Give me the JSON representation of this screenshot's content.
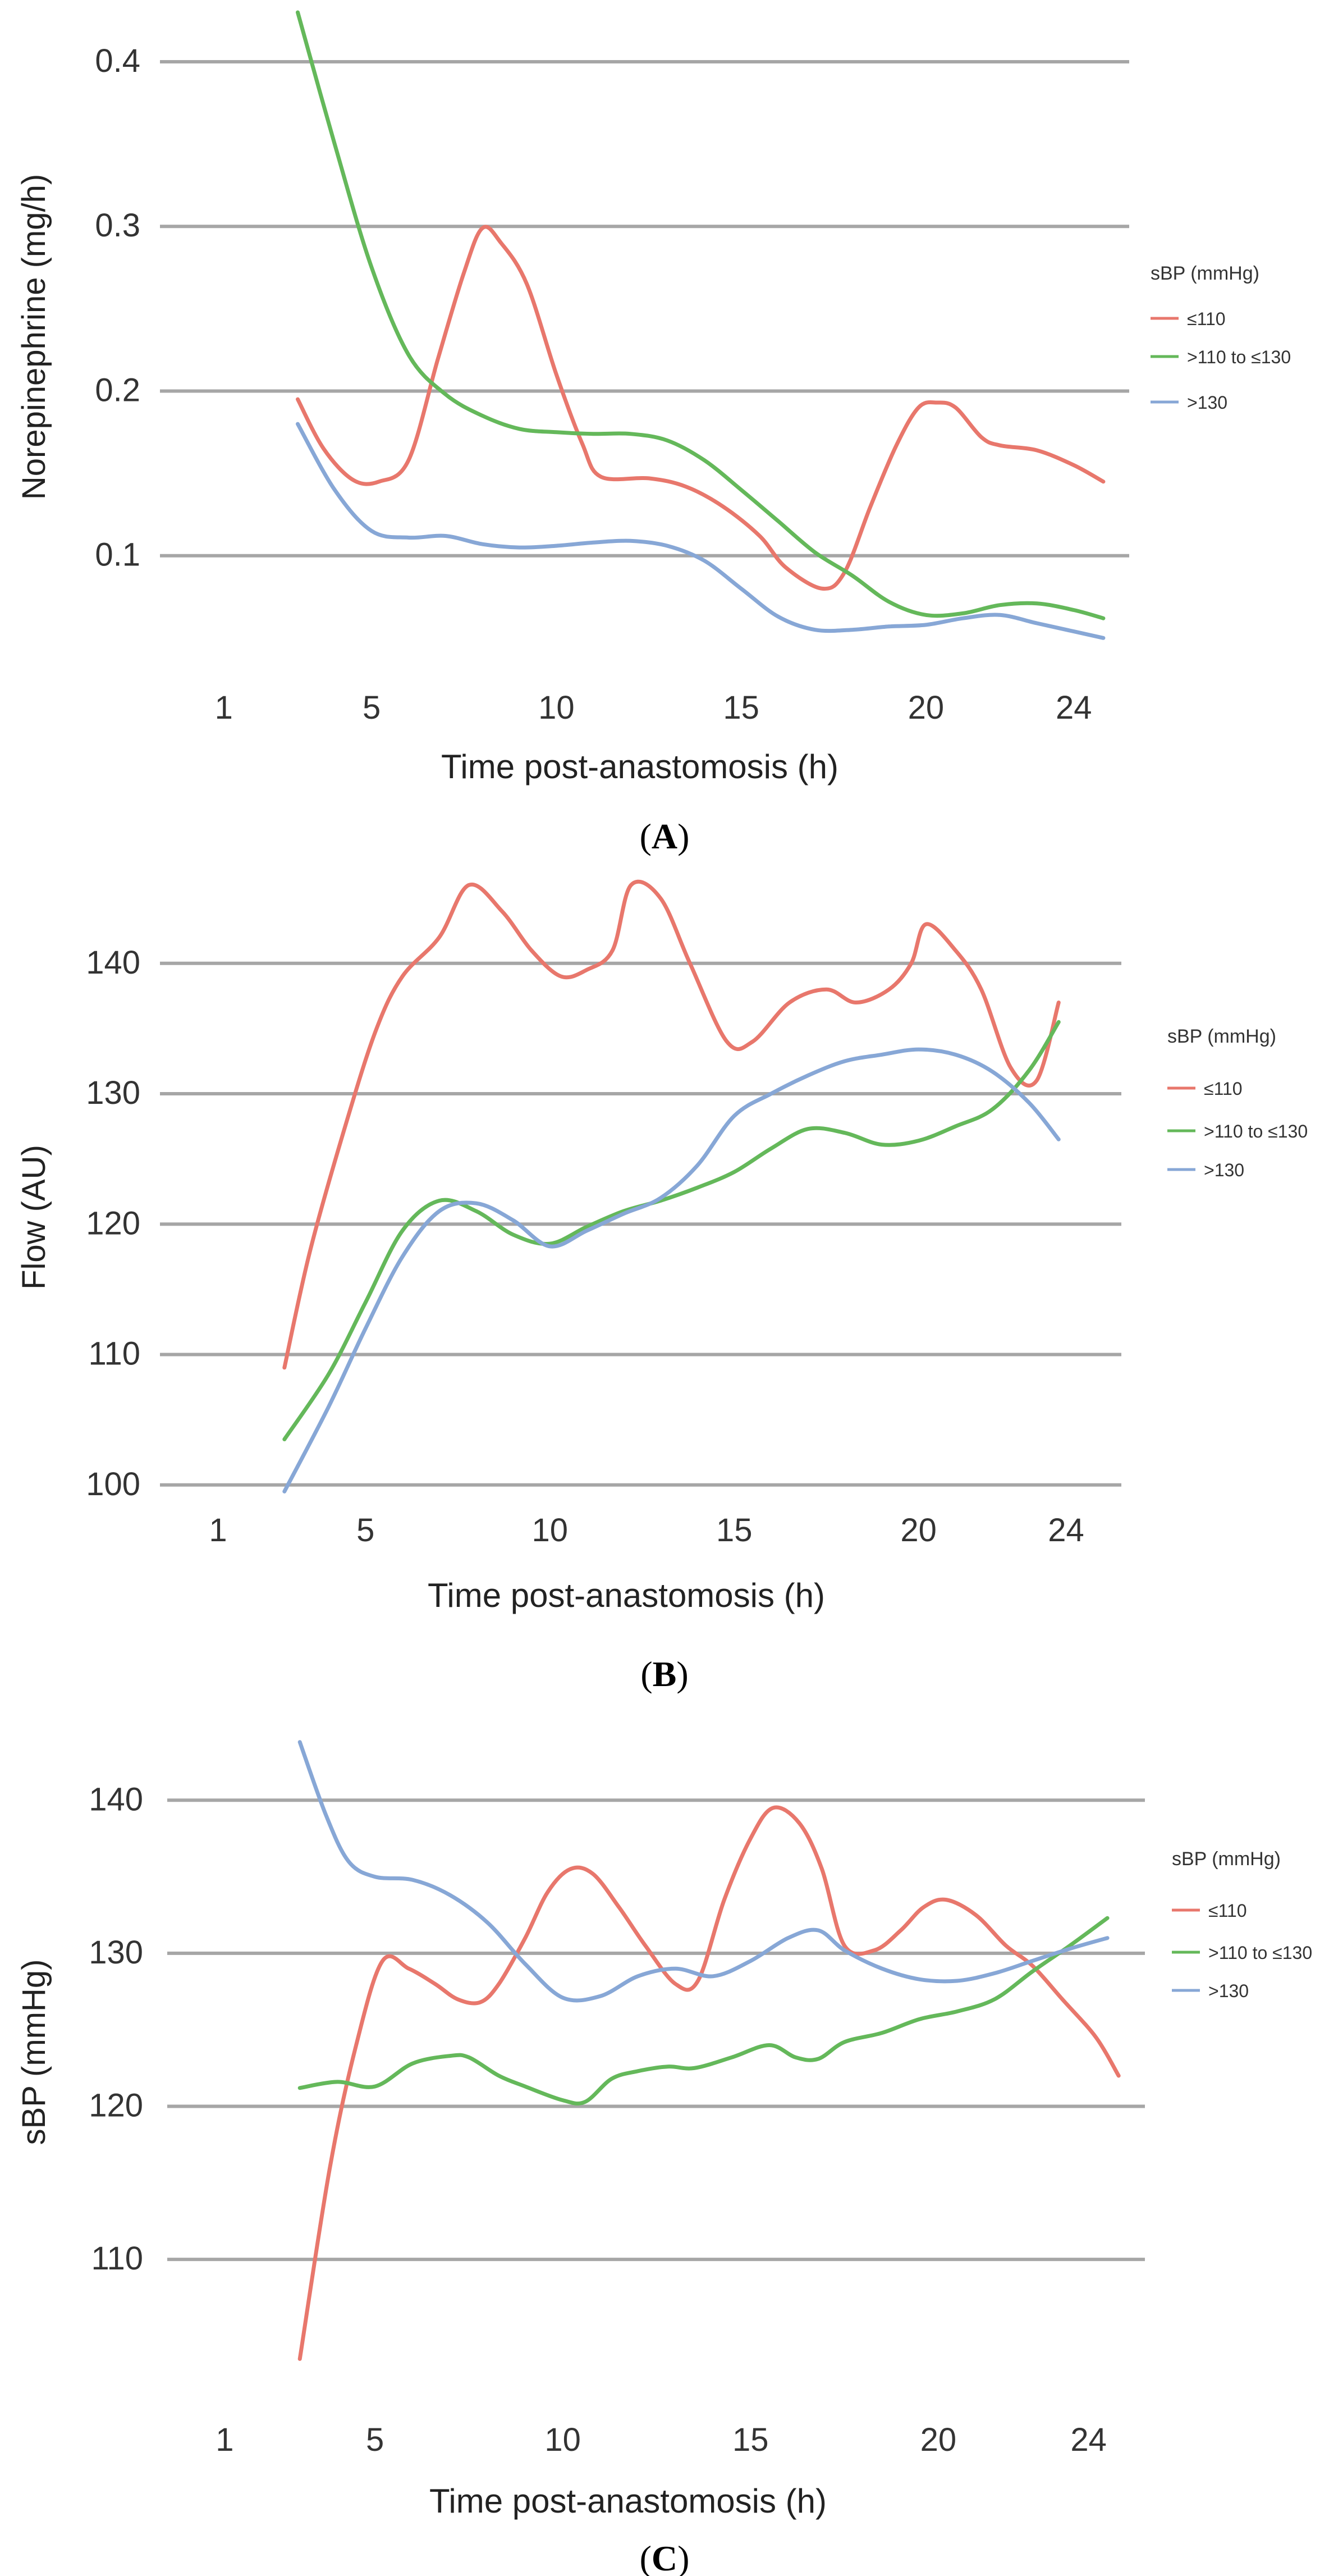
{
  "chart_data": [
    {
      "type": "line",
      "caption_letter": "A",
      "ylabel": "Norepinephrine (mg/h)",
      "xlabel": "Time post-anastomosis (h)",
      "yticks": [
        0.1,
        0.2,
        0.3,
        0.4
      ],
      "ytick_labels": [
        "0.1",
        "0.2",
        "0.3",
        "0.4"
      ],
      "ylim": [
        0.03,
        0.43
      ],
      "xticks": [
        1,
        5,
        10,
        15,
        20,
        24
      ],
      "xtick_labels": [
        "1",
        "5",
        "10",
        "15",
        "20",
        "24"
      ],
      "xlim": [
        -0.5,
        25.5
      ],
      "grid": true,
      "legend": {
        "title": "sBP (mmHg)",
        "placement": "right",
        "entries": [
          "≤110",
          ">110 to ≤130",
          ">130"
        ]
      },
      "series": [
        {
          "name": "≤110",
          "color": "#e8776c",
          "x": [
            3,
            3.7,
            4.5,
            5.2,
            6,
            6.8,
            7.5,
            8,
            8.5,
            9.2,
            10,
            10.7,
            11.2,
            12.5,
            13.5,
            14.5,
            15.5,
            16.2,
            17.2,
            17.8,
            18.5,
            19.2,
            19.8,
            20.3,
            20.8,
            21.5,
            22,
            23,
            24,
            24.8
          ],
          "values": [
            0.195,
            0.165,
            0.146,
            0.145,
            0.158,
            0.22,
            0.272,
            0.299,
            0.29,
            0.265,
            0.21,
            0.168,
            0.148,
            0.147,
            0.142,
            0.13,
            0.112,
            0.093,
            0.08,
            0.09,
            0.13,
            0.167,
            0.19,
            0.193,
            0.19,
            0.172,
            0.167,
            0.164,
            0.155,
            0.145
          ]
        },
        {
          "name": ">110 to ≤130",
          "color": "#64b85a",
          "x": [
            3,
            4,
            5,
            6,
            7,
            8,
            9,
            10,
            11,
            12,
            13,
            14,
            15,
            16,
            17,
            18,
            19,
            20,
            21,
            22,
            23,
            24,
            24.8
          ],
          "values": [
            0.43,
            0.35,
            0.275,
            0.222,
            0.198,
            0.185,
            0.177,
            0.175,
            0.174,
            0.174,
            0.17,
            0.158,
            0.14,
            0.121,
            0.102,
            0.088,
            0.072,
            0.064,
            0.065,
            0.07,
            0.071,
            0.067,
            0.062
          ]
        },
        {
          "name": ">130",
          "color": "#87a7d6",
          "x": [
            3,
            4,
            5,
            6,
            7,
            8,
            9,
            10,
            11,
            12,
            13,
            14,
            15,
            16,
            17,
            18,
            19,
            20,
            21,
            22,
            23,
            24,
            24.8
          ],
          "values": [
            0.18,
            0.14,
            0.115,
            0.111,
            0.112,
            0.107,
            0.105,
            0.106,
            0.108,
            0.109,
            0.106,
            0.097,
            0.08,
            0.063,
            0.055,
            0.055,
            0.057,
            0.058,
            0.062,
            0.064,
            0.059,
            0.054,
            0.05
          ]
        }
      ]
    },
    {
      "type": "line",
      "caption_letter": "B",
      "ylabel": "Flow (AU)",
      "xlabel": "Time post-anastomosis (h)",
      "yticks": [
        100,
        110,
        120,
        130,
        140
      ],
      "ytick_labels": [
        "100",
        "110",
        "120",
        "130",
        "140"
      ],
      "ylim": [
        99,
        148
      ],
      "xticks": [
        1,
        5,
        10,
        15,
        20,
        24
      ],
      "xtick_labels": [
        "1",
        "5",
        "10",
        "15",
        "20",
        "24"
      ],
      "xlim": [
        -0.5,
        25.5
      ],
      "grid": true,
      "legend": {
        "title": "sBP (mmHg)",
        "placement": "right",
        "entries": [
          "≤110",
          ">110 to ≤130",
          ">130"
        ]
      },
      "series": [
        {
          "name": "≤110",
          "color": "#e8776c",
          "x": [
            2.8,
            3.5,
            4.5,
            5.3,
            6,
            7,
            7.8,
            8.7,
            9.5,
            10.3,
            11,
            11.7,
            12.2,
            13,
            13.8,
            14.8,
            15.5,
            16.5,
            17.5,
            18.3,
            19.2,
            19.8,
            20.2,
            21,
            21.7,
            22.5,
            23.2,
            23.8
          ],
          "values": [
            109,
            118,
            128,
            135,
            139,
            142,
            146,
            144,
            141,
            139,
            139.5,
            141,
            146,
            145,
            140,
            134,
            134,
            137,
            138,
            137,
            138,
            140,
            143,
            141,
            138,
            132,
            131,
            137
          ]
        },
        {
          "name": ">110 to ≤130",
          "color": "#64b85a",
          "x": [
            2.8,
            4,
            5,
            6,
            7,
            8,
            9,
            10,
            11,
            12,
            13,
            14,
            15,
            16,
            17,
            18,
            19,
            20,
            21,
            22,
            23,
            23.8
          ],
          "values": [
            103.5,
            108.5,
            114,
            119.5,
            121.8,
            121,
            119.2,
            118.5,
            119.8,
            121,
            121.8,
            122.8,
            124,
            125.8,
            127.3,
            127,
            126.1,
            126.4,
            127.5,
            128.8,
            131.8,
            135.5
          ]
        },
        {
          "name": ">130",
          "color": "#87a7d6",
          "x": [
            2.8,
            4,
            5,
            6,
            7,
            8,
            9,
            10,
            11,
            12,
            13,
            14,
            15,
            16,
            17,
            18,
            19,
            20,
            21,
            22,
            23,
            23.8
          ],
          "values": [
            99.5,
            106,
            112,
            117.5,
            121,
            121.6,
            120.3,
            118.3,
            119.5,
            120.8,
            122,
            124.5,
            128.3,
            130,
            131.4,
            132.5,
            133,
            133.4,
            133,
            131.7,
            129.3,
            126.5
          ]
        }
      ]
    },
    {
      "type": "line",
      "caption_letter": "C",
      "ylabel": "sBP (mmHg)",
      "xlabel": "Time post-anastomosis (h)",
      "yticks": [
        110,
        120,
        130,
        140
      ],
      "ytick_labels": [
        "110",
        "120",
        "130",
        "140"
      ],
      "ylim": [
        103,
        145
      ],
      "xticks": [
        1,
        5,
        10,
        15,
        20,
        24
      ],
      "xtick_labels": [
        "1",
        "5",
        "10",
        "15",
        "20",
        "24"
      ],
      "xlim": [
        -0.5,
        25.5
      ],
      "grid": true,
      "legend": {
        "title": "sBP (mmHg)",
        "placement": "right",
        "entries": [
          "≤110",
          ">110 to ≤130",
          ">130"
        ]
      },
      "series": [
        {
          "name": "≤110",
          "color": "#e8776c",
          "x": [
            3,
            3.8,
            4.5,
            5.2,
            5.9,
            6.6,
            7.2,
            7.8,
            8.3,
            9,
            9.6,
            10.2,
            10.8,
            11.5,
            12.2,
            13,
            13.6,
            14.3,
            15,
            15.6,
            16.3,
            16.9,
            17.5,
            18.3,
            19,
            19.6,
            20.2,
            21,
            21.8,
            22.5,
            23.3,
            24.2,
            24.8
          ],
          "values": [
            103.5,
            116,
            124,
            129.5,
            129,
            128,
            127,
            126.8,
            128,
            131,
            134,
            135.5,
            135.2,
            133,
            130.5,
            128,
            128.2,
            133.5,
            137.5,
            139.5,
            138.5,
            135.5,
            130.5,
            130.2,
            131.5,
            133,
            133.5,
            132.5,
            130.5,
            129.2,
            127,
            124.5,
            122
          ]
        },
        {
          "name": ">110 to ≤130",
          "color": "#64b85a",
          "x": [
            3,
            4,
            5,
            6,
            7,
            7.5,
            8.3,
            9,
            10,
            10.6,
            11.3,
            12,
            12.8,
            13.5,
            14.5,
            15.5,
            16.2,
            16.8,
            17.5,
            18.5,
            19.5,
            20.5,
            21.5,
            22.5,
            23.5,
            24.5
          ],
          "values": [
            121.2,
            121.6,
            121.3,
            122.8,
            123.3,
            123.2,
            122,
            121.3,
            120.4,
            120.3,
            121.8,
            122.3,
            122.6,
            122.5,
            123.2,
            124,
            123.2,
            123.1,
            124.2,
            124.8,
            125.7,
            126.2,
            127,
            128.8,
            130.5,
            132.3
          ]
        },
        {
          "name": ">130",
          "color": "#87a7d6",
          "x": [
            3,
            3.7,
            4.3,
            5,
            6,
            7,
            8,
            9,
            10,
            11,
            12,
            13,
            14,
            15,
            16,
            16.8,
            17.5,
            18.5,
            19.5,
            20.5,
            21.5,
            22.5,
            23.5,
            24.5
          ],
          "values": [
            143.8,
            139,
            136,
            135,
            134.8,
            133.8,
            132,
            129.3,
            127.1,
            127.2,
            128.5,
            129,
            128.5,
            129.5,
            131,
            131.5,
            130.2,
            129,
            128.3,
            128.2,
            128.7,
            129.5,
            130.3,
            131
          ]
        }
      ]
    }
  ]
}
